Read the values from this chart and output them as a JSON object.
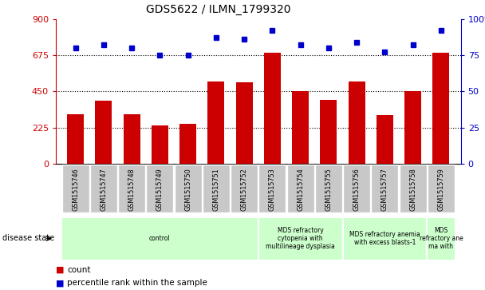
{
  "title": "GDS5622 / ILMN_1799320",
  "samples": [
    "GSM1515746",
    "GSM1515747",
    "GSM1515748",
    "GSM1515749",
    "GSM1515750",
    "GSM1515751",
    "GSM1515752",
    "GSM1515753",
    "GSM1515754",
    "GSM1515755",
    "GSM1515756",
    "GSM1515757",
    "GSM1515758",
    "GSM1515759"
  ],
  "counts": [
    310,
    390,
    310,
    240,
    250,
    510,
    505,
    690,
    450,
    395,
    510,
    305,
    450,
    690
  ],
  "percentiles": [
    80,
    82,
    80,
    75,
    75,
    87,
    86,
    92,
    82,
    80,
    84,
    77,
    82,
    92
  ],
  "ylim_left": [
    0,
    900
  ],
  "ylim_right": [
    0,
    100
  ],
  "yticks_left": [
    0,
    225,
    450,
    675,
    900
  ],
  "yticks_right": [
    0,
    25,
    50,
    75,
    100
  ],
  "bar_color": "#cc0000",
  "dot_color": "#0000cc",
  "bg_color": "#ffffff",
  "tick_box_color": "#c8c8c8",
  "disease_groups": [
    {
      "label": "control",
      "start": 0,
      "end": 7,
      "color": "#ccffcc"
    },
    {
      "label": "MDS refractory\ncytopenia with\nmultilineage dysplasia",
      "start": 7,
      "end": 10,
      "color": "#ccffcc"
    },
    {
      "label": "MDS refractory anemia\nwith excess blasts-1",
      "start": 10,
      "end": 13,
      "color": "#ccffcc"
    },
    {
      "label": "MDS\nrefractory ane\nma with",
      "start": 13,
      "end": 14,
      "color": "#ccffcc"
    }
  ],
  "disease_state_label": "disease state",
  "left_color": "#cc0000",
  "right_color": "#0000cc"
}
